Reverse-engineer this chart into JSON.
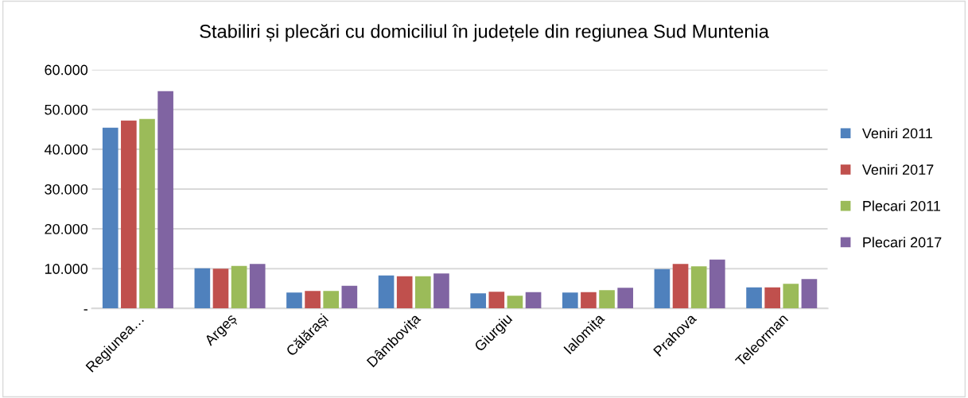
{
  "chart_data": {
    "type": "bar",
    "title": "Stabiliri și plecări cu domiciliul în județele din regiunea Sud Muntenia",
    "categories": [
      "Regiunea…",
      "Argeș",
      "Călărași",
      "Dâmbovița",
      "Giurgiu",
      "Ialomița",
      "Prahova",
      "Teleorman"
    ],
    "series": [
      {
        "name": "Veniri 2011",
        "color": "#4f81bd",
        "values": [
          45400,
          10100,
          4000,
          8300,
          3800,
          4000,
          9900,
          5300
        ]
      },
      {
        "name": "Veniri 2017",
        "color": "#c0504d",
        "values": [
          47200,
          10000,
          4400,
          8100,
          4200,
          4100,
          11200,
          5300
        ]
      },
      {
        "name": "Plecari 2011",
        "color": "#9bbb59",
        "values": [
          47600,
          10700,
          4400,
          8100,
          3200,
          4600,
          10600,
          6200
        ]
      },
      {
        "name": "Plecari 2017",
        "color": "#8064a2",
        "values": [
          54600,
          11200,
          5700,
          8800,
          4100,
          5200,
          12300,
          7400
        ]
      }
    ],
    "ylim": [
      0,
      60000
    ],
    "yticks": [
      {
        "value": 0,
        "label": "-"
      },
      {
        "value": 10000,
        "label": "10.000"
      },
      {
        "value": 20000,
        "label": "20.000"
      },
      {
        "value": 30000,
        "label": "30.000"
      },
      {
        "value": 40000,
        "label": "40.000"
      },
      {
        "value": 50000,
        "label": "50.000"
      },
      {
        "value": 60000,
        "label": "60.000"
      }
    ],
    "grid": "y",
    "legend": "right"
  }
}
